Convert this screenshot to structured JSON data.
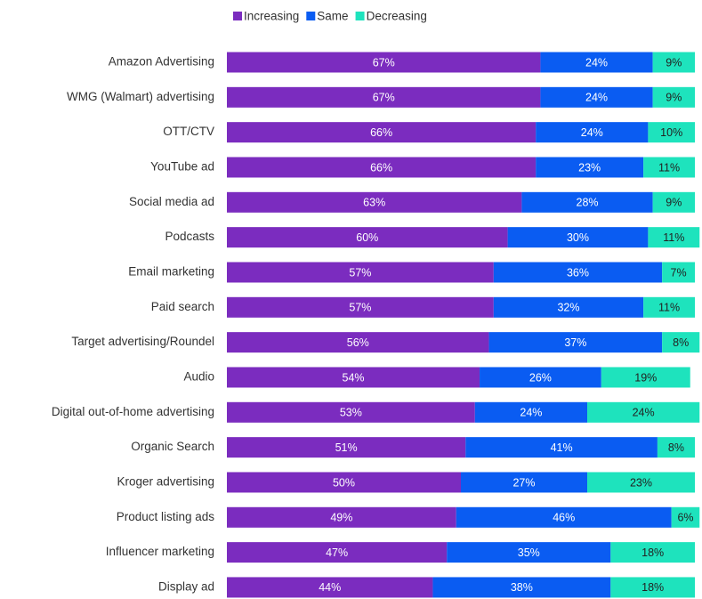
{
  "chart_data": {
    "type": "stacked_bar_horizontal",
    "categories": [
      "Amazon Advertising",
      "WMG (Walmart) advertising",
      "OTT/CTV",
      "YouTube ad",
      "Social media ad",
      "Podcasts",
      "Email marketing",
      "Paid search",
      "Target advertising/Roundel",
      "Audio",
      "Digital out-of-home advertising",
      "Organic Search",
      "Kroger advertising",
      "Product listing ads",
      "Influencer marketing",
      "Display ad"
    ],
    "xlim": [
      0,
      100
    ],
    "legend": "top",
    "series": [
      {
        "name": "Increasing",
        "color": "#7b2cbf",
        "values": [
          67,
          67,
          66,
          66,
          63,
          60,
          57,
          57,
          56,
          54,
          53,
          51,
          50,
          49,
          47,
          44
        ],
        "value_labels": [
          "67%",
          "67%",
          "66%",
          "66%",
          "63%",
          "60%",
          "57%",
          "57%",
          "56%",
          "54%",
          "53%",
          "51%",
          "50%",
          "49%",
          "47%",
          "44%"
        ]
      },
      {
        "name": "Same",
        "color": "#0a5cf2",
        "values": [
          24,
          24,
          24,
          23,
          28,
          30,
          36,
          32,
          37,
          26,
          24,
          41,
          27,
          46,
          35,
          38
        ],
        "value_labels": [
          "24%",
          "24%",
          "24%",
          "23%",
          "28%",
          "30%",
          "36%",
          "32%",
          "37%",
          "26%",
          "24%",
          "41%",
          "27%",
          "46%",
          "35%",
          "38%"
        ]
      },
      {
        "name": "Decreasing",
        "color": "#1ee3bd",
        "values": [
          9,
          9,
          10,
          11,
          9,
          11,
          7,
          11,
          8,
          19,
          24,
          8,
          23,
          6,
          18,
          18
        ],
        "value_labels": [
          "9%",
          "9%",
          "10%",
          "11%",
          "9%",
          "11%",
          "7%",
          "11%",
          "8%",
          "19%",
          "24%",
          "8%",
          "23%",
          "6%",
          "18%",
          "18%"
        ]
      }
    ]
  }
}
